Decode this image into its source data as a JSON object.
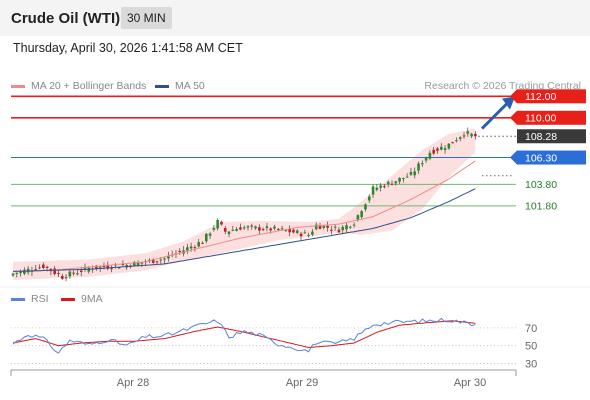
{
  "header": {
    "title": "Crude Oil (WTI)",
    "period": "30 MIN",
    "timestamp": "Thursday, April 30, 2026 1:41:58 AM CET"
  },
  "legend": {
    "ma20_label": "MA 20 + Bollinger Bands",
    "ma50_label": "MA 50",
    "credit": "Research © 2026 Trading Central",
    "rsi_label": "RSI",
    "ma9_label": "9MA"
  },
  "colors": {
    "ma20": "#f08a8a",
    "ma50": "#2f4f8f",
    "resistance": "#e8201a",
    "support": "#6fb96f",
    "pivot": "#2b6fd6",
    "last": "#3a3a3a",
    "candle_up": "#2a8a2a",
    "candle_down": "#c41f1f",
    "rsi": "#5b83d9",
    "rsi_ma": "#d41a1a",
    "band": "#fbd9d9",
    "arrow": "#2b5fb0"
  },
  "chart_data": [
    {
      "type": "candlestick",
      "ylim": [
        94.9,
        112.4
      ],
      "x_tick_labels": [
        "Apr 28",
        "Apr 29",
        "Apr 30"
      ],
      "levels": [
        {
          "label": "112.00",
          "value": 112.0,
          "kind": "resistance"
        },
        {
          "label": "110.00",
          "value": 110.0,
          "kind": "resistance"
        },
        {
          "label": "108.28",
          "value": 108.28,
          "kind": "last"
        },
        {
          "label": "106.30",
          "value": 106.3,
          "kind": "pivot"
        },
        {
          "label": "103.80",
          "value": 103.8,
          "kind": "support"
        },
        {
          "label": "101.80",
          "value": 101.8,
          "kind": "support"
        }
      ],
      "series": [
        {
          "name": "MA 20 + Bollinger Bands",
          "anchors": [
            [
              0,
              95.7
            ],
            [
              10,
              95.8
            ],
            [
              20,
              96.1
            ],
            [
              35,
              96.6
            ],
            [
              45,
              97.5
            ],
            [
              60,
              98.8
            ],
            [
              75,
              99.8
            ],
            [
              86,
              100.1
            ],
            [
              95,
              100.8
            ],
            [
              105,
              102.4
            ],
            [
              115,
              104.3
            ],
            [
              122,
              106.0
            ]
          ]
        },
        {
          "name": "MA 50",
          "anchors": [
            [
              0,
              95.7
            ],
            [
              20,
              95.9
            ],
            [
              40,
              96.4
            ],
            [
              55,
              97.3
            ],
            [
              70,
              98.2
            ],
            [
              85,
              99.1
            ],
            [
              95,
              99.7
            ],
            [
              105,
              100.7
            ],
            [
              115,
              102.2
            ],
            [
              122,
              103.4
            ]
          ]
        },
        {
          "name": "Bollinger upper",
          "anchors": [
            [
              0,
              96.6
            ],
            [
              20,
              96.8
            ],
            [
              35,
              97.4
            ],
            [
              45,
              98.5
            ],
            [
              55,
              100.3
            ],
            [
              65,
              100.4
            ],
            [
              78,
              100.3
            ],
            [
              86,
              100.6
            ],
            [
              92,
              102.2
            ],
            [
              100,
              104.6
            ],
            [
              108,
              107.0
            ],
            [
              115,
              108.5
            ],
            [
              122,
              109.0
            ]
          ]
        },
        {
          "name": "Bollinger lower",
          "anchors": [
            [
              0,
              94.9
            ],
            [
              20,
              95.2
            ],
            [
              35,
              95.8
            ],
            [
              45,
              96.7
            ],
            [
              55,
              97.4
            ],
            [
              70,
              98.6
            ],
            [
              80,
              99.0
            ],
            [
              86,
              99.3
            ],
            [
              92,
              99.1
            ],
            [
              100,
              99.5
            ],
            [
              108,
              101.5
            ],
            [
              115,
              104.5
            ],
            [
              122,
              106.8
            ]
          ]
        }
      ],
      "close_anchors": [
        [
          0,
          95.5
        ],
        [
          8,
          96.2
        ],
        [
          13,
          95.2
        ],
        [
          20,
          96.0
        ],
        [
          30,
          96.3
        ],
        [
          40,
          96.9
        ],
        [
          45,
          97.7
        ],
        [
          50,
          98.5
        ],
        [
          54,
          100.3
        ],
        [
          56,
          99.4
        ],
        [
          60,
          99.8
        ],
        [
          70,
          99.6
        ],
        [
          78,
          99.1
        ],
        [
          80,
          100.0
        ],
        [
          86,
          99.6
        ],
        [
          90,
          100.3
        ],
        [
          95,
          103.4
        ],
        [
          100,
          104.0
        ],
        [
          105,
          104.7
        ],
        [
          110,
          106.8
        ],
        [
          115,
          107.5
        ],
        [
          119,
          108.6
        ],
        [
          122,
          108.28
        ]
      ],
      "candle_count": 123
    },
    {
      "type": "line",
      "ylim": [
        25,
        90
      ],
      "y_tick_labels": [
        "70",
        "50",
        "30"
      ],
      "y_ticks": [
        70,
        50,
        30
      ],
      "series": [
        {
          "name": "RSI",
          "anchors": [
            [
              0,
              52
            ],
            [
              4,
              63
            ],
            [
              8,
              58
            ],
            [
              12,
              42
            ],
            [
              15,
              56
            ],
            [
              20,
              51
            ],
            [
              25,
              57
            ],
            [
              30,
              50
            ],
            [
              35,
              60
            ],
            [
              40,
              61
            ],
            [
              45,
              67
            ],
            [
              50,
              74
            ],
            [
              54,
              78
            ],
            [
              57,
              60
            ],
            [
              61,
              66
            ],
            [
              65,
              62
            ],
            [
              70,
              52
            ],
            [
              74,
              48
            ],
            [
              78,
              44
            ],
            [
              80,
              54
            ],
            [
              85,
              52
            ],
            [
              90,
              58
            ],
            [
              95,
              74
            ],
            [
              100,
              76
            ],
            [
              105,
              77
            ],
            [
              110,
              78
            ],
            [
              115,
              79
            ],
            [
              119,
              76
            ],
            [
              122,
              74
            ]
          ]
        },
        {
          "name": "9MA",
          "anchors": [
            [
              0,
              53
            ],
            [
              6,
              58
            ],
            [
              12,
              50
            ],
            [
              18,
              53
            ],
            [
              25,
              55
            ],
            [
              32,
              55
            ],
            [
              40,
              58
            ],
            [
              48,
              66
            ],
            [
              54,
              71
            ],
            [
              60,
              66
            ],
            [
              66,
              60
            ],
            [
              72,
              54
            ],
            [
              78,
              48
            ],
            [
              84,
              50
            ],
            [
              90,
              53
            ],
            [
              96,
              65
            ],
            [
              102,
              73
            ],
            [
              110,
              76
            ],
            [
              116,
              78
            ],
            [
              122,
              75
            ]
          ]
        }
      ]
    }
  ]
}
